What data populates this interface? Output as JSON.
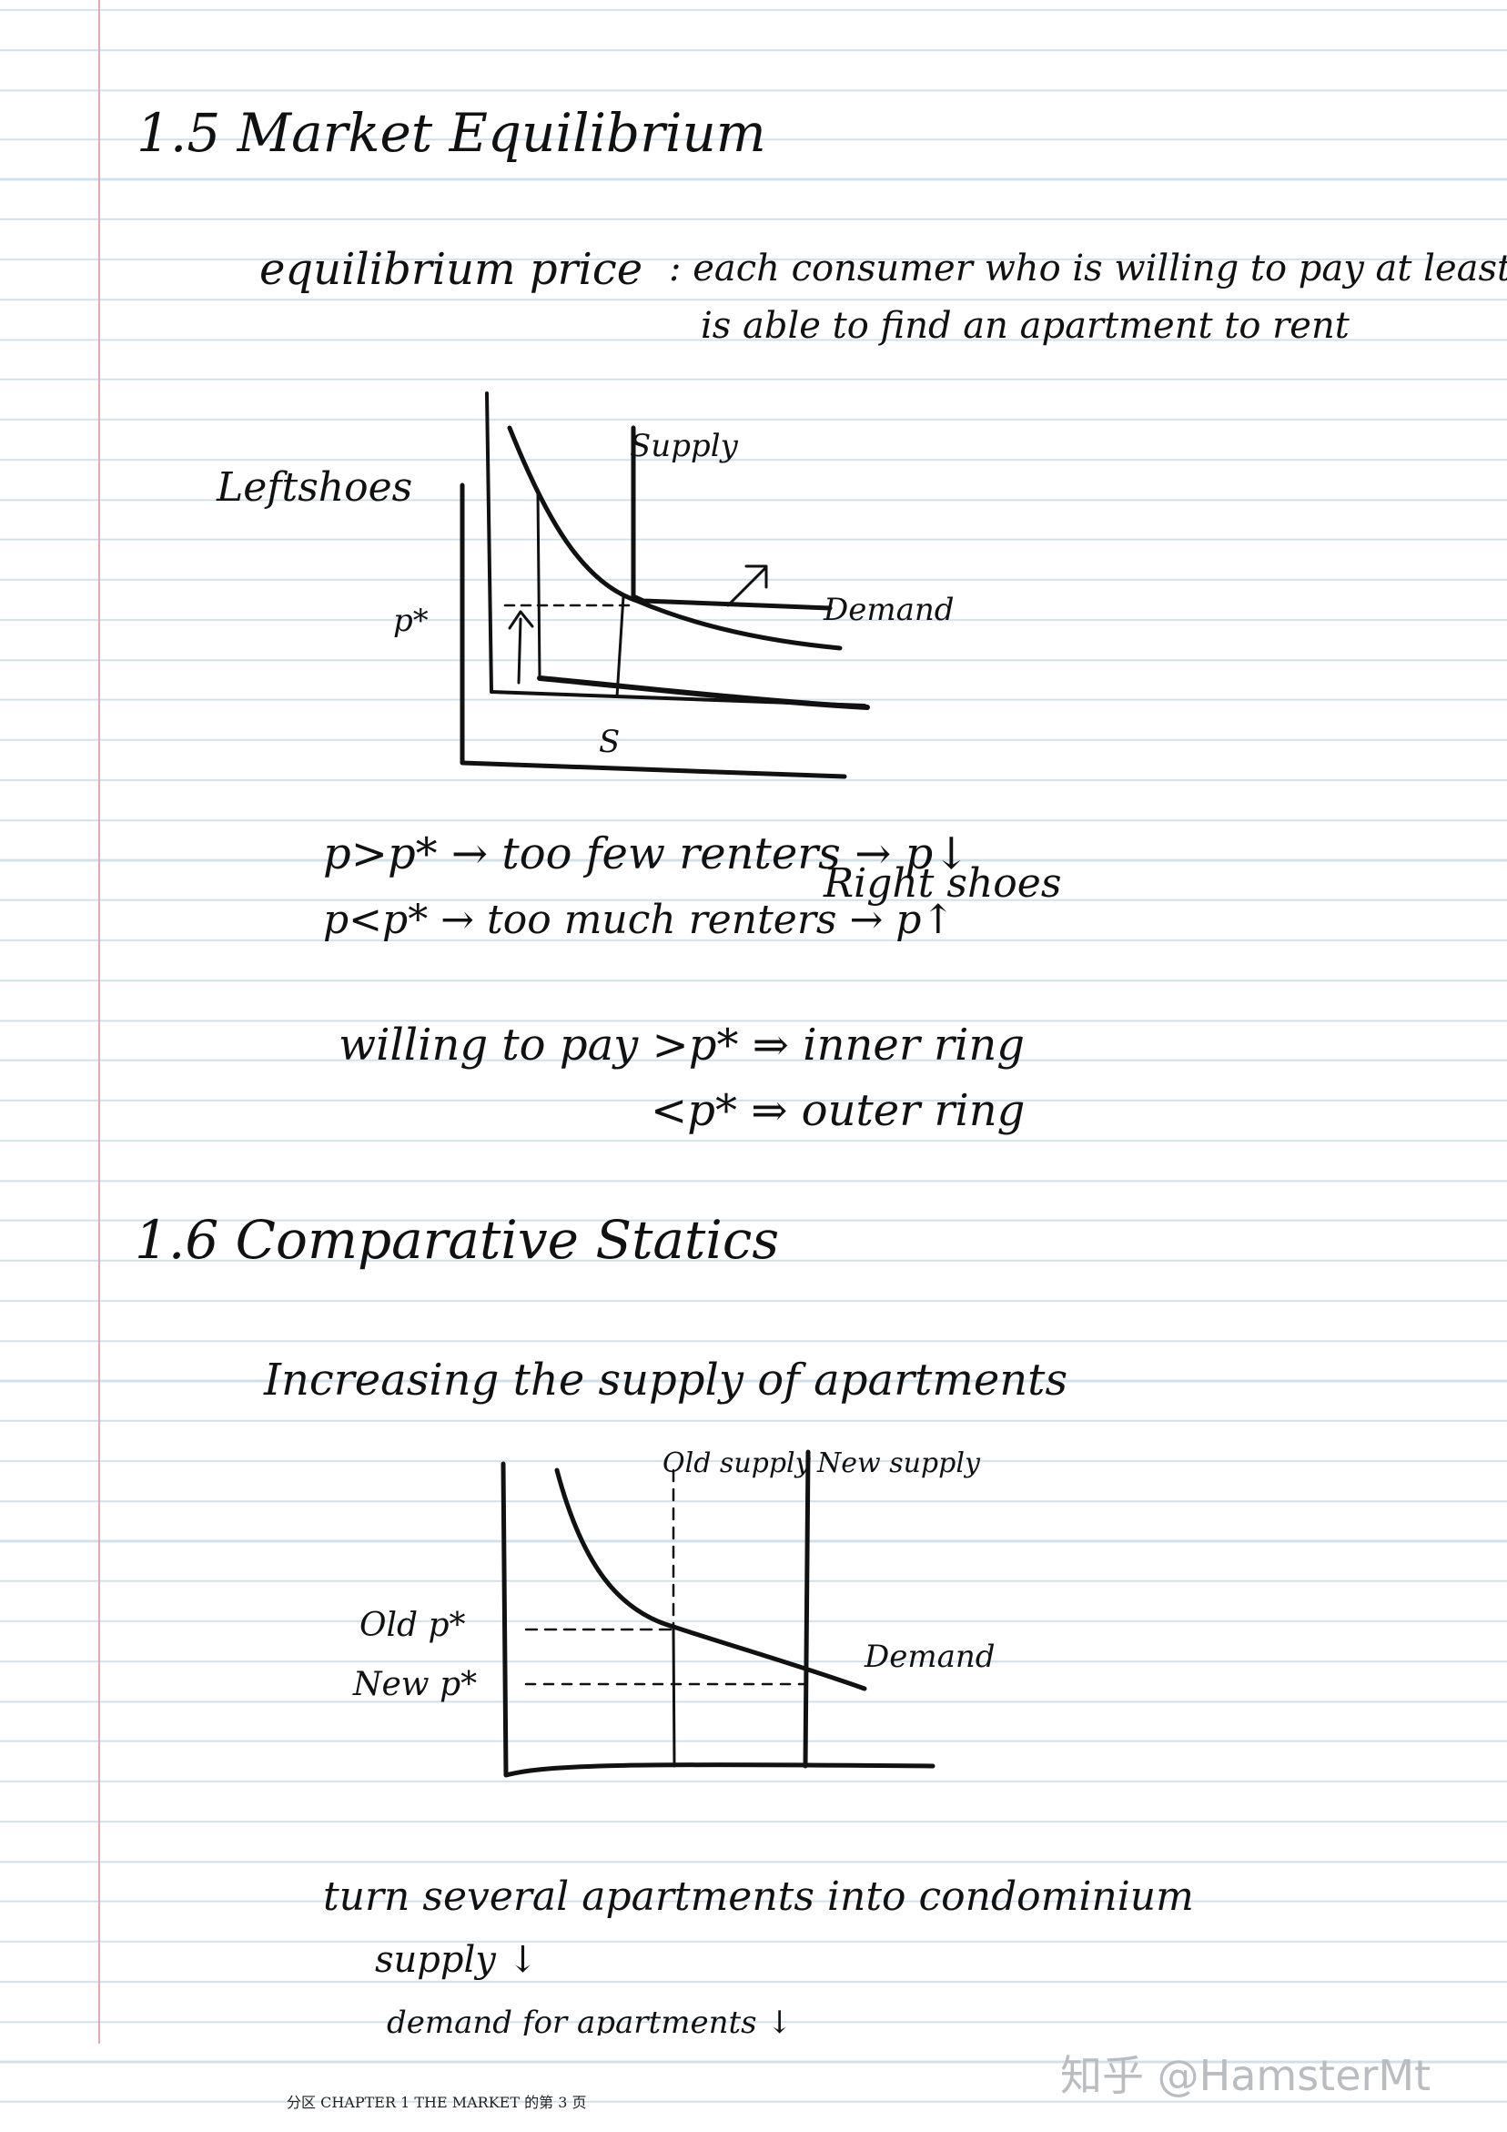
{
  "section_1_5": {
    "heading": "1.5 Market Equilibrium",
    "definition_term": "equilibrium price",
    "definition_line1": ": each consumer who is willing to pay at least p*",
    "definition_line2": "is able to find an apartment to rent",
    "graph": {
      "side_label": "Leftshoes",
      "supply_label": "Supply",
      "demand_label": "Demand",
      "price_label": "p*",
      "quantity_label": "S"
    },
    "line_above": "p>p* → too few renters → p↓",
    "line_below": "p<p* → too much renters → p↑",
    "right_shoes": "Right shoes",
    "ring_line1": "willing to pay >p* ⇒ inner ring",
    "ring_line2": "<p* ⇒ outer ring"
  },
  "section_1_6": {
    "heading": "1.6 Comparative Statics",
    "subheading": "Increasing the supply of apartments",
    "graph": {
      "old_supply": "Old supply",
      "new_supply": "New supply",
      "old_price": "Old p*",
      "new_price": "New p*",
      "demand_label": "Demand"
    },
    "note_line1": "turn several apartments into condominium",
    "note_line2": "supply ↓",
    "note_line3": "demand for apartments ↓"
  },
  "footer": "分区 CHAPTER 1 THE MARKET 的第 3 页",
  "watermark": "知乎 @HamsterMt"
}
